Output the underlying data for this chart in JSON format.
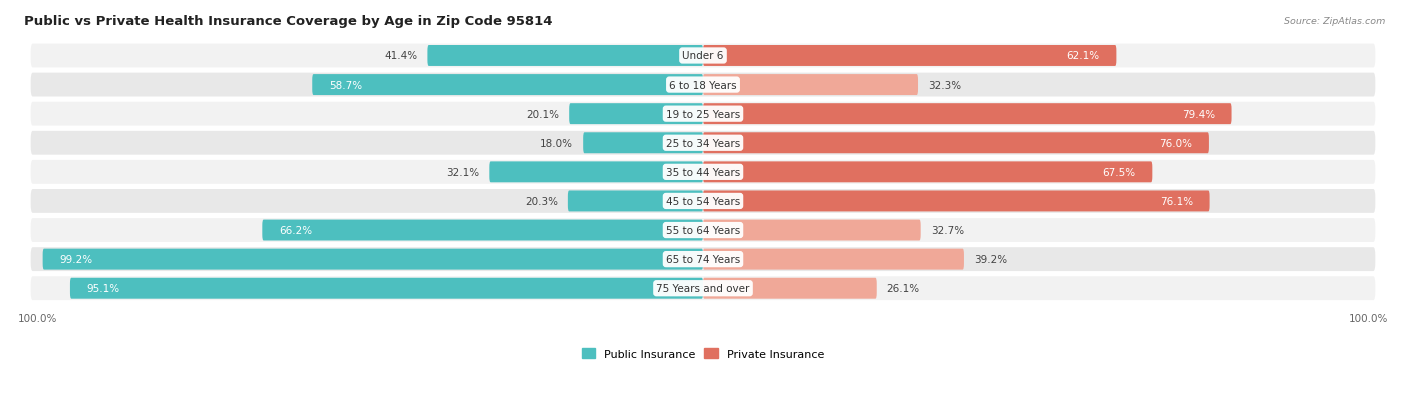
{
  "title": "Public vs Private Health Insurance Coverage by Age in Zip Code 95814",
  "source": "Source: ZipAtlas.com",
  "categories": [
    "Under 6",
    "6 to 18 Years",
    "19 to 25 Years",
    "25 to 34 Years",
    "35 to 44 Years",
    "45 to 54 Years",
    "55 to 64 Years",
    "65 to 74 Years",
    "75 Years and over"
  ],
  "public_values": [
    41.4,
    58.7,
    20.1,
    18.0,
    32.1,
    20.3,
    66.2,
    99.2,
    95.1
  ],
  "private_values": [
    62.1,
    32.3,
    79.4,
    76.0,
    67.5,
    76.1,
    32.7,
    39.2,
    26.1
  ],
  "public_color": "#4dbfbf",
  "private_color_dark": "#e07060",
  "private_color_light": "#f0a898",
  "private_threshold": 60,
  "public_label_inside_color": "#ffffff",
  "public_label_outside_color": "#555555",
  "private_label_inside_color": "#ffffff",
  "private_label_outside_color": "#555555",
  "row_bg_odd": "#f2f2f2",
  "row_bg_even": "#e8e8e8",
  "max_value": 100.0,
  "figsize": [
    14.06,
    4.14
  ],
  "dpi": 100,
  "title_fontsize": 9.5,
  "label_fontsize": 7.5,
  "tick_fontsize": 7.5,
  "legend_fontsize": 8,
  "category_fontsize": 7.5
}
